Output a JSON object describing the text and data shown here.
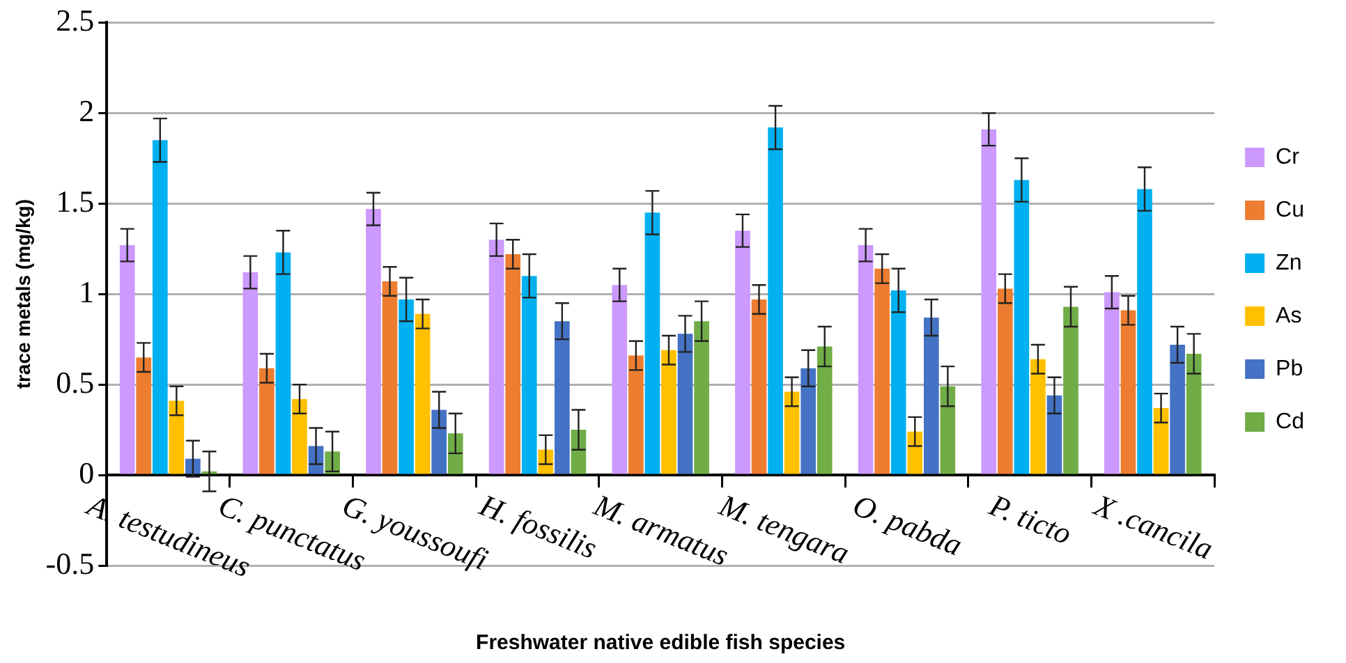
{
  "chart_data": {
    "type": "bar",
    "xlabel": "Freshwater native edible fish species",
    "ylabel": "trace metals (mg/kg)",
    "categories": [
      "A. testudineus",
      "C. punctatus",
      "G. youssoufi",
      "H. fossilis",
      "M. armatus",
      "M. tengara",
      "O. pabda",
      "P. ticto",
      "X .cancila"
    ],
    "series": [
      {
        "name": "Cr",
        "color": "#cc99ff",
        "values": [
          1.27,
          1.12,
          1.47,
          1.3,
          1.05,
          1.35,
          1.27,
          1.91,
          1.01
        ],
        "errors": [
          0.09,
          0.09,
          0.09,
          0.09,
          0.09,
          0.09,
          0.09,
          0.09,
          0.09
        ]
      },
      {
        "name": "Cu",
        "color": "#ed7d31",
        "values": [
          0.65,
          0.59,
          1.07,
          1.22,
          0.66,
          0.97,
          1.14,
          1.03,
          0.91
        ],
        "errors": [
          0.08,
          0.08,
          0.08,
          0.08,
          0.08,
          0.08,
          0.08,
          0.08,
          0.08
        ]
      },
      {
        "name": "Zn",
        "color": "#00b0f0",
        "values": [
          1.85,
          1.23,
          0.97,
          1.1,
          1.45,
          1.92,
          1.02,
          1.63,
          1.58
        ],
        "errors": [
          0.12,
          0.12,
          0.12,
          0.12,
          0.12,
          0.12,
          0.12,
          0.12,
          0.12
        ]
      },
      {
        "name": "As",
        "color": "#ffc000",
        "values": [
          0.41,
          0.42,
          0.89,
          0.14,
          0.69,
          0.46,
          0.24,
          0.64,
          0.37
        ],
        "errors": [
          0.08,
          0.08,
          0.08,
          0.08,
          0.08,
          0.08,
          0.08,
          0.08,
          0.08
        ]
      },
      {
        "name": "Pb",
        "color": "#4472c4",
        "values": [
          0.09,
          0.16,
          0.36,
          0.85,
          0.78,
          0.59,
          0.87,
          0.44,
          0.72
        ],
        "errors": [
          0.1,
          0.1,
          0.1,
          0.1,
          0.1,
          0.1,
          0.1,
          0.1,
          0.1
        ]
      },
      {
        "name": "Cd",
        "color": "#70ad47",
        "values": [
          0.02,
          0.13,
          0.23,
          0.25,
          0.85,
          0.71,
          0.49,
          0.93,
          0.67
        ],
        "errors": [
          0.11,
          0.11,
          0.11,
          0.11,
          0.11,
          0.11,
          0.11,
          0.11,
          0.11
        ]
      }
    ],
    "ylim": [
      -0.5,
      2.5
    ],
    "yticks": [
      -0.5,
      0,
      0.5,
      1,
      1.5,
      2,
      2.5
    ],
    "grid": "y",
    "legend": "right"
  }
}
